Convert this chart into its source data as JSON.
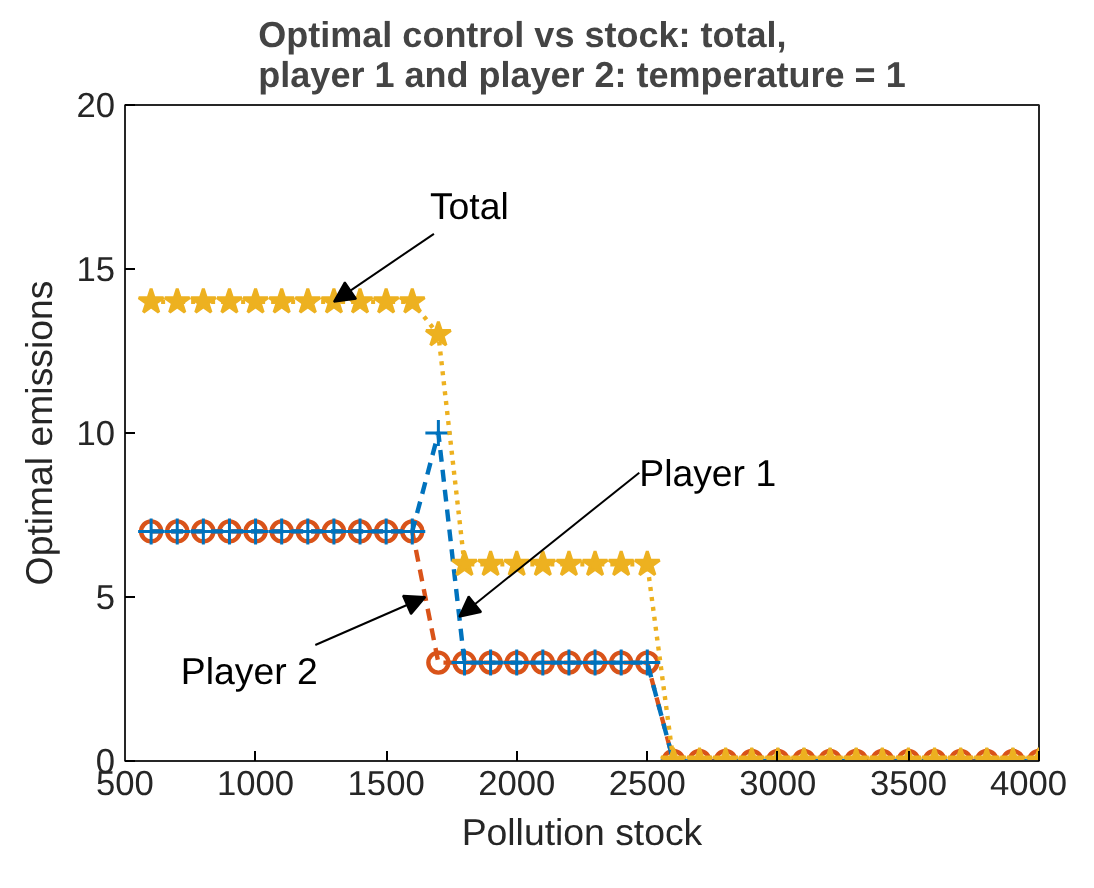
{
  "chart_data": {
    "type": "line",
    "title": "Optimal control vs stock: total,\nplayer 1 and player 2: temperature = 1",
    "xlabel": "Pollution stock",
    "ylabel": "Optimal emissions",
    "x": [
      600,
      700,
      800,
      900,
      1000,
      1100,
      1200,
      1300,
      1400,
      1500,
      1600,
      1700,
      1800,
      1900,
      2000,
      2100,
      2200,
      2300,
      2400,
      2500,
      2600,
      2700,
      2800,
      2900,
      3000,
      3100,
      3200,
      3300,
      3400,
      3500,
      3600,
      3700,
      3800,
      3900,
      4000
    ],
    "series": [
      {
        "color": "#d95319",
        "marker": "circle",
        "line_style": "dashed",
        "values": [
          7,
          7,
          7,
          7,
          7,
          7,
          7,
          7,
          7,
          7,
          7,
          3,
          3,
          3,
          3,
          3,
          3,
          3,
          3,
          3,
          0,
          0,
          0,
          0,
          0,
          0,
          0,
          0,
          0,
          0,
          0,
          0,
          0,
          0,
          0
        ]
      },
      {
        "color": "#0072bd",
        "marker": "cross",
        "line_style": "dashed",
        "values": [
          7,
          7,
          7,
          7,
          7,
          7,
          7,
          7,
          7,
          7,
          7,
          10,
          3,
          3,
          3,
          3,
          3,
          3,
          3,
          3,
          0,
          0,
          0,
          0,
          0,
          0,
          0,
          0,
          0,
          0,
          0,
          0,
          0,
          0,
          0
        ]
      },
      {
        "color": "#edb120",
        "marker": "star",
        "line_style": "dotted",
        "values": [
          14,
          14,
          14,
          14,
          14,
          14,
          14,
          14,
          14,
          14,
          14,
          13,
          6,
          6,
          6,
          6,
          6,
          6,
          6,
          6,
          0,
          0,
          0,
          0,
          0,
          0,
          0,
          0,
          0,
          0,
          0,
          0,
          0,
          0,
          0
        ]
      }
    ],
    "annotations": [
      {
        "text": "Total",
        "x": 1300,
        "y": 14
      },
      {
        "text": "Player 1",
        "x": 1780,
        "y": 4.4
      },
      {
        "text": "Player 2",
        "x": 1650,
        "y": 5
      }
    ],
    "xlim": [
      500,
      4000
    ],
    "ylim": [
      0,
      20
    ],
    "xticks": [
      500,
      1000,
      1500,
      2000,
      2500,
      3000,
      3500,
      4000
    ],
    "yticks": [
      0,
      5,
      10,
      15,
      20
    ],
    "grid": false
  }
}
